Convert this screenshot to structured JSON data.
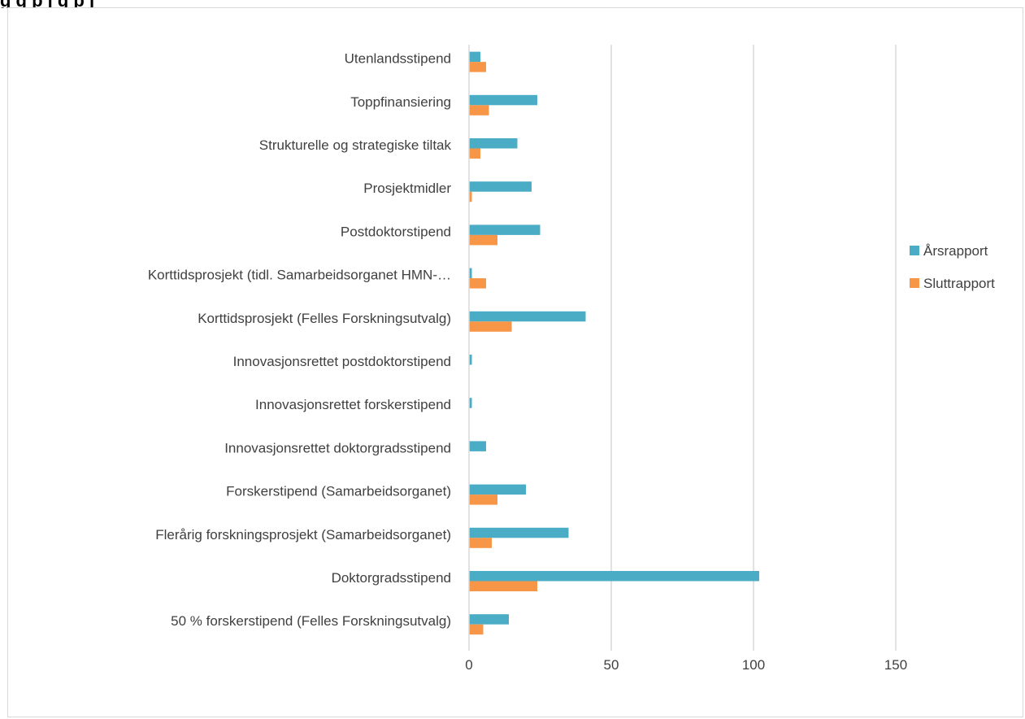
{
  "header": {
    "title_fragment": "g              g p   j      g              p   j"
  },
  "chart_data": {
    "type": "bar",
    "orientation": "horizontal",
    "categories": [
      "Utenlandsstipend",
      "Toppfinansiering",
      "Strukturelle og strategiske tiltak",
      "Prosjektmidler",
      "Postdoktorstipend",
      "Korttidsprosjekt (tidl. Samarbeidsorganet HMN-…",
      "Korttidsprosjekt (Felles Forskningsutvalg)",
      "Innovasjonsrettet postdoktorstipend",
      "Innovasjonsrettet forskerstipend",
      "Innovasjonsrettet doktorgradsstipend",
      "Forskerstipend (Samarbeidsorganet)",
      "Flerårig forskningsprosjekt (Samarbeidsorganet)",
      "Doktorgradsstipend",
      "50 % forskerstipend (Felles Forskningsutvalg)"
    ],
    "series": [
      {
        "name": "Årsrapport",
        "color": "#4bacc6",
        "values": [
          4,
          24,
          17,
          22,
          25,
          1,
          41,
          1,
          1,
          6,
          20,
          35,
          102,
          14
        ]
      },
      {
        "name": "Sluttrapport",
        "color": "#f79646",
        "values": [
          6,
          7,
          4,
          1,
          10,
          6,
          15,
          0,
          0,
          0,
          10,
          8,
          24,
          5
        ]
      }
    ],
    "xlim": [
      0,
      150
    ],
    "xticks": [
      "0",
      "50",
      "100",
      "150"
    ],
    "grid": true,
    "legend_position": "right"
  }
}
